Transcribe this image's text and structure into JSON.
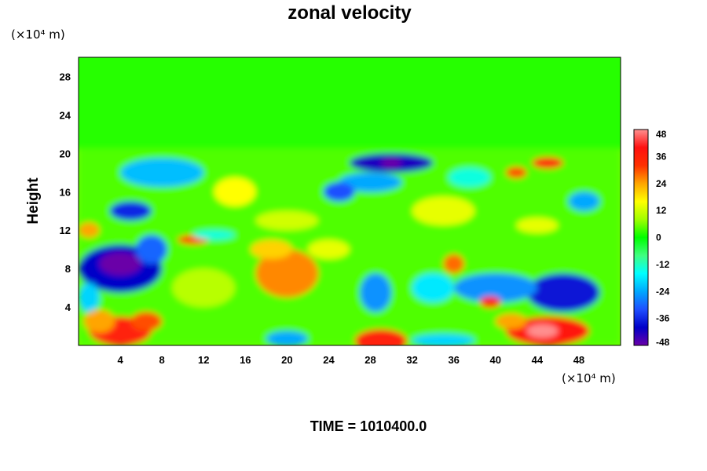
{
  "chart_data": {
    "type": "heatmap",
    "title": "zonal velocity",
    "ylabel": "Height",
    "xlabel": "",
    "x_unit": "(×10⁴ m)",
    "y_unit": "(×10⁴ m)",
    "xlim": [
      0,
      52
    ],
    "ylim": [
      0,
      30
    ],
    "x_ticks": [
      4,
      8,
      12,
      16,
      20,
      24,
      28,
      32,
      36,
      40,
      44,
      48
    ],
    "y_ticks": [
      4,
      8,
      12,
      16,
      20,
      24,
      28
    ],
    "colorbar": {
      "range": [
        -48,
        48
      ],
      "ticks": [
        48,
        36,
        24,
        12,
        0,
        -12,
        -24,
        -36,
        -48
      ],
      "colors_low_to_high": [
        "#6a00a8",
        "#0000c8",
        "#1f4fff",
        "#00a8ff",
        "#00ffff",
        "#40ff80",
        "#00ff00",
        "#a0ff00",
        "#ffff00",
        "#ffa500",
        "#ff3000",
        "#ff1010",
        "#ff9090"
      ]
    },
    "background_value": 0,
    "features": [
      {
        "x": 4,
        "y": 1.5,
        "rx": 3,
        "ry": 1.5,
        "value": 36
      },
      {
        "x": 2,
        "y": 2.5,
        "rx": 1.5,
        "ry": 1.2,
        "value": 24
      },
      {
        "x": 6.5,
        "y": 2.5,
        "rx": 1.5,
        "ry": 1,
        "value": 30
      },
      {
        "x": 29,
        "y": 0.5,
        "rx": 2.5,
        "ry": 1.2,
        "value": 36
      },
      {
        "x": 45,
        "y": 1.5,
        "rx": 4,
        "ry": 1.5,
        "value": 38
      },
      {
        "x": 44.5,
        "y": 1.5,
        "rx": 1.5,
        "ry": 0.7,
        "value": 48
      },
      {
        "x": 41.5,
        "y": 2.5,
        "rx": 1.5,
        "ry": 0.8,
        "value": 24
      },
      {
        "x": 4,
        "y": 8,
        "rx": 4,
        "ry": 2.5,
        "value": -40
      },
      {
        "x": 4,
        "y": 8.5,
        "rx": 2,
        "ry": 1.2,
        "value": -48
      },
      {
        "x": 7,
        "y": 10,
        "rx": 1.5,
        "ry": 1.5,
        "value": -30
      },
      {
        "x": 1,
        "y": 5,
        "rx": 1,
        "ry": 1.5,
        "value": -20
      },
      {
        "x": 20,
        "y": 7.5,
        "rx": 3,
        "ry": 2.5,
        "value": 26
      },
      {
        "x": 18.5,
        "y": 10,
        "rx": 2,
        "ry": 1,
        "value": 20
      },
      {
        "x": 28.5,
        "y": 5.5,
        "rx": 1.5,
        "ry": 2,
        "value": -26
      },
      {
        "x": 20,
        "y": 0.7,
        "rx": 2,
        "ry": 0.8,
        "value": -24
      },
      {
        "x": 35,
        "y": 0.5,
        "rx": 3,
        "ry": 0.7,
        "value": -20
      },
      {
        "x": 46.5,
        "y": 5.5,
        "rx": 3.5,
        "ry": 2,
        "value": -38
      },
      {
        "x": 40,
        "y": 6,
        "rx": 4,
        "ry": 1.5,
        "value": -26
      },
      {
        "x": 39.5,
        "y": 4.5,
        "rx": 1,
        "ry": 0.6,
        "value": 34
      },
      {
        "x": 34,
        "y": 6,
        "rx": 2,
        "ry": 1.5,
        "value": -18
      },
      {
        "x": 36,
        "y": 8.5,
        "rx": 1,
        "ry": 1,
        "value": 28
      },
      {
        "x": 30,
        "y": 19,
        "rx": 4,
        "ry": 1,
        "value": -42
      },
      {
        "x": 30,
        "y": 19,
        "rx": 1,
        "ry": 0.5,
        "value": -48
      },
      {
        "x": 28,
        "y": 17,
        "rx": 3,
        "ry": 1,
        "value": -24
      },
      {
        "x": 25,
        "y": 16,
        "rx": 1.5,
        "ry": 1,
        "value": -32
      },
      {
        "x": 5,
        "y": 14,
        "rx": 2,
        "ry": 1,
        "value": -36
      },
      {
        "x": 8,
        "y": 18,
        "rx": 4,
        "ry": 1.5,
        "value": -22
      },
      {
        "x": 45,
        "y": 19,
        "rx": 1.5,
        "ry": 0.6,
        "value": 36
      },
      {
        "x": 42,
        "y": 18,
        "rx": 1,
        "ry": 0.6,
        "value": 30
      },
      {
        "x": 48.5,
        "y": 15,
        "rx": 1.5,
        "ry": 1,
        "value": -24
      },
      {
        "x": 44,
        "y": 12.5,
        "rx": 2,
        "ry": 0.8,
        "value": 14
      },
      {
        "x": 11,
        "y": 11,
        "rx": 1.5,
        "ry": 0.5,
        "value": 30
      },
      {
        "x": 13,
        "y": 11.5,
        "rx": 2,
        "ry": 0.5,
        "value": -14
      },
      {
        "x": 20,
        "y": 13,
        "rx": 3,
        "ry": 1,
        "value": 12
      },
      {
        "x": 15,
        "y": 16,
        "rx": 2,
        "ry": 1.5,
        "value": 16
      },
      {
        "x": 35,
        "y": 14,
        "rx": 3,
        "ry": 1.5,
        "value": 14
      },
      {
        "x": 24,
        "y": 10,
        "rx": 2,
        "ry": 1,
        "value": 14
      },
      {
        "x": 12,
        "y": 6,
        "rx": 3,
        "ry": 2,
        "value": 10
      },
      {
        "x": 37.5,
        "y": 17.5,
        "rx": 2,
        "ry": 1,
        "value": -14
      },
      {
        "x": 1,
        "y": 12,
        "rx": 1,
        "ry": 0.8,
        "value": 24
      }
    ],
    "upper_layer": {
      "y_from": 20.5,
      "value": 2
    },
    "time_label": "TIME = 1010400.0"
  }
}
